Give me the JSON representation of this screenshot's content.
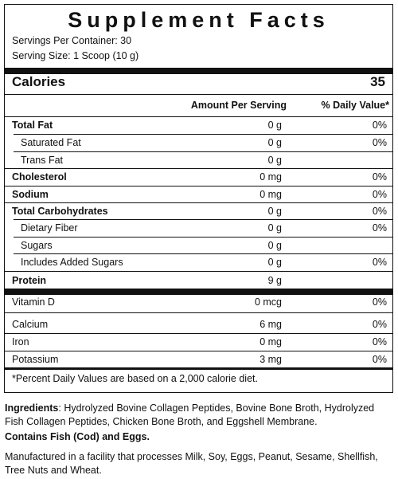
{
  "title": "Supplement Facts",
  "servings_per_container": "Servings Per Container: 30",
  "serving_size": "Serving Size: 1 Scoop (10 g)",
  "calories": {
    "label": "Calories",
    "value": "35"
  },
  "headers": {
    "amount": "Amount Per Serving",
    "dv": "% Daily Value*"
  },
  "nutrients": [
    {
      "label": "Total Fat",
      "amount": "0 g",
      "dv": "0%"
    },
    {
      "label": "Saturated Fat",
      "amount": "0 g",
      "dv": "0%"
    },
    {
      "label": "Trans Fat",
      "amount": "0 g",
      "dv": ""
    },
    {
      "label": "Cholesterol",
      "amount": "0 mg",
      "dv": "0%"
    },
    {
      "label": "Sodium",
      "amount": "0 mg",
      "dv": "0%"
    },
    {
      "label": "Total Carbohydrates",
      "amount": "0 g",
      "dv": "0%"
    },
    {
      "label": "Dietary Fiber",
      "amount": "0 g",
      "dv": "0%"
    },
    {
      "label": "Sugars",
      "amount": "0 g",
      "dv": ""
    },
    {
      "label": "Includes Added Sugars",
      "amount": "0 g",
      "dv": "0%"
    },
    {
      "label": "Protein",
      "amount": "9 g",
      "dv": ""
    }
  ],
  "vitamins": [
    {
      "label": "Vitamin D",
      "amount": "0 mcg",
      "dv": "0%"
    },
    {
      "label": "Calcium",
      "amount": "6 mg",
      "dv": "0%"
    },
    {
      "label": "Iron",
      "amount": "0 mg",
      "dv": "0%"
    },
    {
      "label": "Potassium",
      "amount": "3 mg",
      "dv": "0%"
    }
  ],
  "footnote": "*Percent Daily Values are based on a 2,000 calorie diet.",
  "ingredients_label": "Ingredients",
  "ingredients_text": ": Hydrolyzed Bovine Collagen Peptides, Bovine Bone Broth, Hydrolyzed Fish Collagen Peptides, Chicken Bone Broth, and Eggshell Membrane.",
  "allergens": "Contains Fish (Cod) and Eggs.",
  "facility": "Manufactured in a facility that processes Milk, Soy, Eggs, Peanut, Sesame, Shellfish, Tree Nuts and Wheat."
}
